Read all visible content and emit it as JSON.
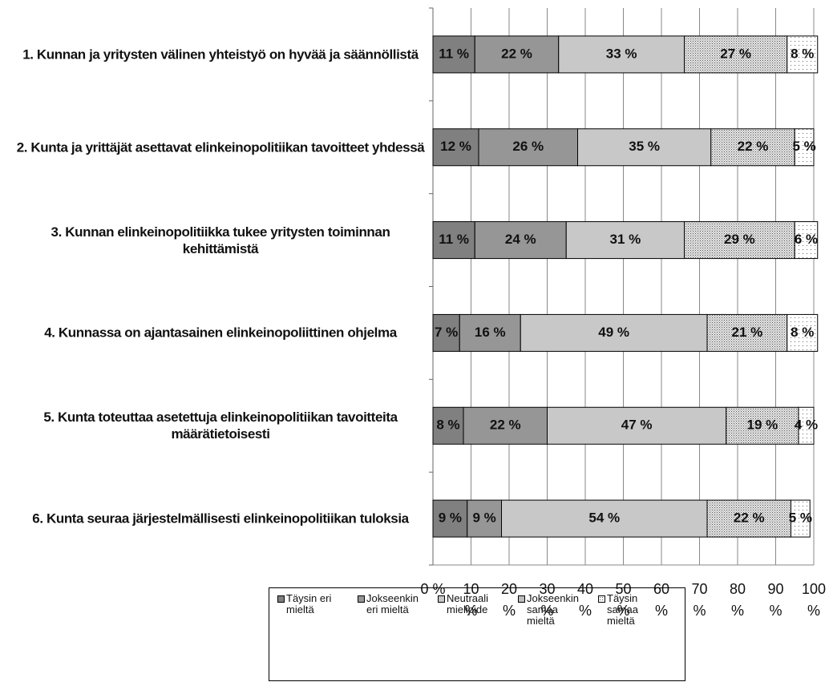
{
  "chart_data": {
    "type": "stacked-bar-horizontal",
    "categories": [
      "1. Kunnan ja yritysten välinen yhteistyö on hyvää ja säännöllistä",
      "2. Kunta ja yrittäjät asettavat elinkeinopolitiikan tavoitteet yhdessä",
      "3. Kunnan elinkeinopolitiikka tukee yritysten toiminnan kehittämistä",
      "4. Kunnassa on ajantasainen elinkeinopoliittinen ohjelma",
      "5. Kunta toteuttaa asetettuja elinkeinopolitiikan tavoitteita määrätietoisesti",
      "6. Kunta seuraa järjestelmällisesti elinkeinopolitiikan tuloksia"
    ],
    "series": [
      {
        "name": "Täysin eri mieltä",
        "color": "#808080",
        "values": [
          11,
          12,
          11,
          7,
          8,
          9
        ],
        "value_labels": [
          "11 %",
          "12 %",
          "11 %",
          "7 %",
          "8 %",
          "9 %"
        ]
      },
      {
        "name": "Jokseenkin eri mieltä",
        "color": "#969696",
        "values": [
          22,
          26,
          24,
          16,
          22,
          9
        ],
        "value_labels": [
          "22 %",
          "26 %",
          "24 %",
          "16 %",
          "22 %",
          "9 %"
        ]
      },
      {
        "name": "Neutraali mielipide",
        "color": "#c8c8c8",
        "values": [
          33,
          35,
          31,
          49,
          47,
          54
        ],
        "value_labels": [
          "33 %",
          "35 %",
          "31 %",
          "49 %",
          "47 %",
          "54 %"
        ]
      },
      {
        "name": "Jokseenkin samaa mieltä",
        "color": "#e0e0e0",
        "pattern": "dense-dots",
        "values": [
          27,
          22,
          29,
          21,
          19,
          22
        ],
        "value_labels": [
          "27 %",
          "22 %",
          "29 %",
          "21 %",
          "19 %",
          "22 %"
        ]
      },
      {
        "name": "Täysin samaa mieltä",
        "color": "#ffffff",
        "pattern": "sparse-dots",
        "values": [
          8,
          5,
          6,
          8,
          4,
          5
        ],
        "value_labels": [
          "8 %",
          "5 %",
          "6 %",
          "8 %",
          "4 %",
          "5 %"
        ]
      }
    ],
    "xlim": [
      0,
      100
    ],
    "xticks": [
      {
        "value": 0,
        "label": "0 %"
      },
      {
        "value": 10,
        "label": "10 %"
      },
      {
        "value": 20,
        "label": "20 %"
      },
      {
        "value": 30,
        "label": "30 %"
      },
      {
        "value": 40,
        "label": "40 %"
      },
      {
        "value": 50,
        "label": "50 %"
      },
      {
        "value": 60,
        "label": "60 %"
      },
      {
        "value": 70,
        "label": "70 %"
      },
      {
        "value": 80,
        "label": "80 %"
      },
      {
        "value": 90,
        "label": "90 %"
      },
      {
        "value": 100,
        "label": "100 %"
      }
    ],
    "grid": true,
    "legend": "bottom"
  }
}
